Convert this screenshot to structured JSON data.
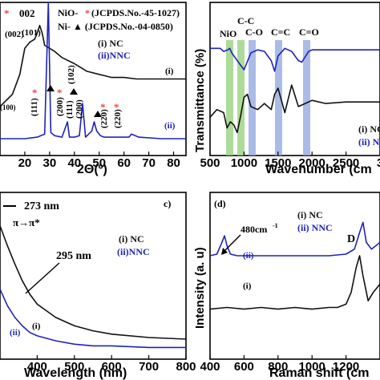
{
  "colors": {
    "nc": "#111111",
    "nnc": "#1f23b8",
    "star": "#e8483f",
    "band": "#92cf77",
    "bandBlue": "#8fa4e0"
  },
  "chart_data": [
    {
      "type": "line",
      "panel": "a",
      "xlabel": "2Θ(º)",
      "xlim": [
        10,
        85
      ],
      "xticks": [
        "20",
        "30",
        "40",
        "50",
        "60",
        "70",
        "80"
      ],
      "legend": {
        "title1": "NiO-",
        "title1b": " (JCPDS.No.-45-1027)",
        "title2": "Ni- ▲ (JCPDS.No.-04-0850)",
        "s1": "(i) NC",
        "s2": "(ii)NNC"
      },
      "labels": {
        "curve1": "(i)",
        "curve2": "(ii)",
        "p002": "002",
        "p002b": "(002)",
        "p101": "(101)",
        "p102": "(102)",
        "p111": "(111)",
        "p111b": "(111)",
        "p200": "(200)",
        "p200b": "(200)",
        "p220": "(220)",
        "p220b": "(220)",
        "p100": "(100)"
      },
      "series": [
        {
          "name": "(i) NC",
          "x": [
            10,
            15,
            18,
            20,
            22,
            24,
            25,
            26,
            27,
            28,
            30,
            32,
            35,
            40,
            43,
            45,
            50,
            55,
            60,
            65,
            70,
            75,
            80,
            85
          ],
          "y": [
            0.32,
            0.4,
            0.53,
            0.7,
            0.74,
            0.76,
            0.8,
            0.85,
            0.8,
            0.72,
            0.7,
            0.68,
            0.64,
            0.6,
            0.57,
            0.55,
            0.53,
            0.51,
            0.51,
            0.5,
            0.5,
            0.5,
            0.5,
            0.5
          ]
        },
        {
          "name": "(ii)NNC",
          "x": [
            10,
            20,
            25,
            28,
            29.5,
            30.5,
            32,
            35,
            37.2,
            38,
            40,
            42,
            43.3,
            44.5,
            47,
            48,
            49,
            50.5,
            52,
            55,
            58,
            62,
            63,
            66,
            75,
            80,
            85
          ],
          "y": [
            0.11,
            0.11,
            0.12,
            0.14,
            1.0,
            0.15,
            0.13,
            0.12,
            0.22,
            0.12,
            0.12,
            0.13,
            0.34,
            0.12,
            0.16,
            0.22,
            0.16,
            0.13,
            0.12,
            0.12,
            0.12,
            0.12,
            0.14,
            0.12,
            0.11,
            0.11,
            0.11
          ]
        }
      ]
    },
    {
      "type": "line",
      "panel": "b",
      "ylabel": "Transmittance (%)",
      "xlabel": "Wavenumber (cm",
      "xlim": [
        500,
        3000
      ],
      "xticks": [
        "500",
        "1000",
        "1500",
        "2000",
        "2500",
        "3"
      ],
      "bands": [
        "NiO",
        "C-C",
        "C-O",
        "C=C",
        "C=O"
      ],
      "legend": {
        "s1": "(i) NC",
        "s2": "(ii) NN"
      },
      "series": [
        {
          "name": "(i) NC",
          "x": [
            500,
            600,
            700,
            750,
            800,
            850,
            900,
            950,
            1000,
            1050,
            1100,
            1200,
            1300,
            1400,
            1450,
            1500,
            1600,
            1700,
            1800,
            1900,
            2000,
            2200,
            2500,
            3000
          ],
          "y": [
            0.25,
            0.3,
            0.28,
            0.18,
            0.22,
            0.2,
            0.15,
            0.26,
            0.38,
            0.4,
            0.32,
            0.3,
            0.34,
            0.3,
            0.4,
            0.44,
            0.28,
            0.46,
            0.32,
            0.34,
            0.36,
            0.34,
            0.35,
            0.35
          ]
        },
        {
          "name": "(ii) NN",
          "x": [
            500,
            650,
            700,
            760,
            790,
            820,
            900,
            1000,
            1100,
            1200,
            1300,
            1400,
            1450,
            1500,
            1600,
            1700,
            1800,
            1850,
            1950,
            2000,
            2500,
            3000
          ],
          "y": [
            0.7,
            0.7,
            0.68,
            0.69,
            0.7,
            0.67,
            0.62,
            0.56,
            0.67,
            0.69,
            0.68,
            0.62,
            0.55,
            0.65,
            0.7,
            0.68,
            0.62,
            0.61,
            0.68,
            0.69,
            0.69,
            0.69
          ]
        }
      ]
    },
    {
      "type": "line",
      "panel": "c",
      "xlabel": "Wavelength (nm)",
      "xlim": [
        300,
        800
      ],
      "xticks": [
        "400",
        "500",
        "600",
        "700",
        "800"
      ],
      "annotations": {
        "a273": "273 nm",
        "trans": "π→π*",
        "a295": "295 nm",
        "i": "(i)",
        "ii": "(ii)"
      },
      "legend": {
        "s1": "(i) NC",
        "s2": "(ii)NNC",
        "tag": "c)"
      },
      "series": [
        {
          "name": "(i) NC",
          "x": [
            300,
            320,
            340,
            360,
            380,
            400,
            450,
            500,
            550,
            600,
            700,
            800
          ],
          "y": [
            0.8,
            0.68,
            0.57,
            0.47,
            0.39,
            0.33,
            0.25,
            0.2,
            0.17,
            0.15,
            0.13,
            0.12
          ]
        },
        {
          "name": "(ii)NNC",
          "x": [
            300,
            320,
            340,
            360,
            380,
            400,
            450,
            500,
            550,
            600,
            700,
            800
          ],
          "y": [
            0.42,
            0.32,
            0.25,
            0.2,
            0.16,
            0.14,
            0.11,
            0.09,
            0.08,
            0.08,
            0.07,
            0.07
          ]
        }
      ]
    },
    {
      "type": "line",
      "panel": "d",
      "ylabel": "Intensity (a. u)",
      "xlabel": "Raman shift (cm",
      "xlim": [
        400,
        1400
      ],
      "xticks": [
        "400",
        "600",
        "800",
        "1000",
        "1200"
      ],
      "annotations": {
        "p480": "480cm",
        "sup": "-1",
        "D": "D",
        "i": "(i)",
        "ii": "(ii)",
        "tag": "(d)"
      },
      "legend": {
        "s1": "(i) NC",
        "s2": "(ii) NNC"
      },
      "series": [
        {
          "name": "(i) NC",
          "x": [
            400,
            500,
            600,
            700,
            800,
            900,
            1000,
            1100,
            1150,
            1200,
            1230,
            1260,
            1280,
            1300,
            1330,
            1360,
            1400
          ],
          "y": [
            0.3,
            0.31,
            0.3,
            0.31,
            0.3,
            0.31,
            0.3,
            0.31,
            0.31,
            0.33,
            0.4,
            0.55,
            0.62,
            0.5,
            0.35,
            0.4,
            0.45
          ]
        },
        {
          "name": "(ii) NNC",
          "x": [
            400,
            440,
            470,
            485,
            500,
            520,
            560,
            600,
            700,
            800,
            900,
            1000,
            1100,
            1200,
            1250,
            1280,
            1300,
            1320,
            1350,
            1400
          ],
          "y": [
            0.62,
            0.63,
            0.7,
            0.74,
            0.68,
            0.63,
            0.62,
            0.62,
            0.62,
            0.62,
            0.62,
            0.62,
            0.62,
            0.63,
            0.66,
            0.76,
            0.82,
            0.7,
            0.66,
            0.7
          ]
        }
      ]
    }
  ]
}
